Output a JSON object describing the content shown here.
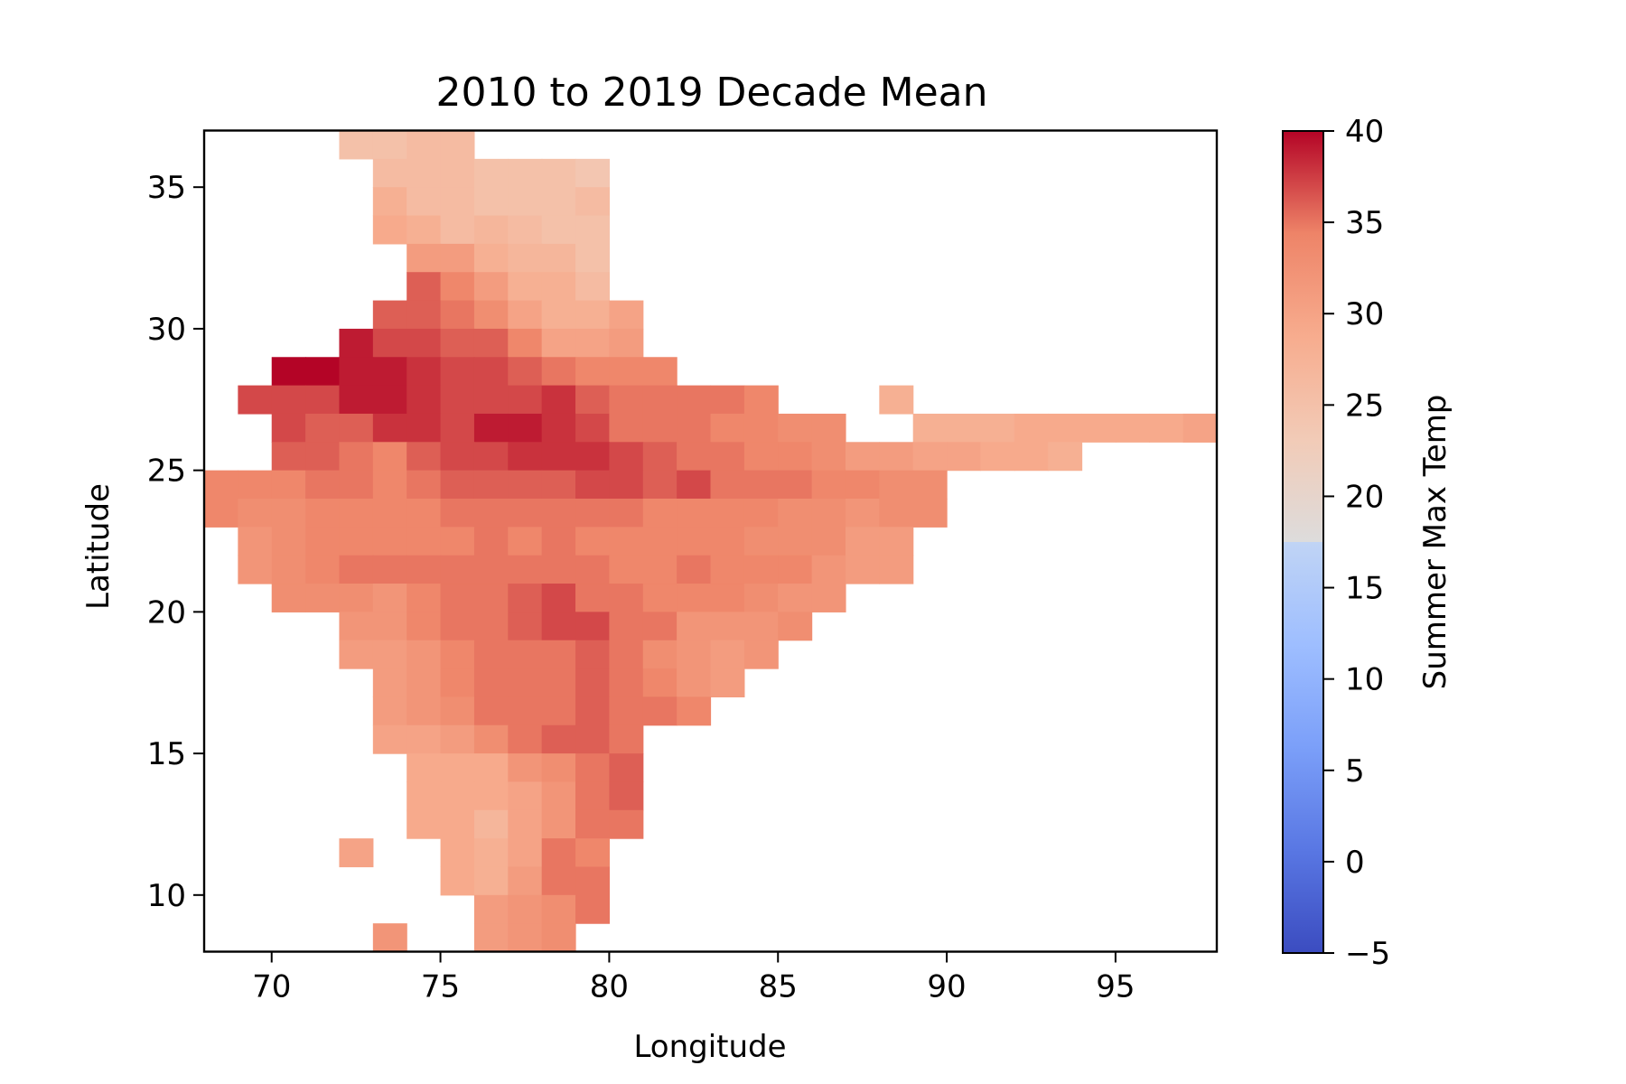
{
  "chart_data": {
    "type": "heatmap",
    "title": "2010 to 2019 Decade Mean",
    "xlabel": "Longitude",
    "ylabel": "Latitude",
    "xlim": [
      68,
      98
    ],
    "ylim": [
      8,
      37
    ],
    "xticks": [
      70,
      75,
      80,
      85,
      90,
      95
    ],
    "yticks": [
      10,
      15,
      20,
      25,
      30,
      35
    ],
    "cell_size_deg": 1,
    "grid_origin": {
      "lon": 68,
      "lat": 8
    },
    "colormap": "coolwarm",
    "colorbar": {
      "label": "Summer Max Temp",
      "range": [
        -5,
        40
      ],
      "ticks": [
        -5,
        0,
        5,
        10,
        15,
        20,
        25,
        30,
        35,
        40
      ]
    },
    "grid": false,
    "rows": [
      {
        "lat": 36.5,
        "start_lon": 72,
        "values": [
          25,
          25,
          26,
          26
        ]
      },
      {
        "lat": 35.5,
        "start_lon": 73,
        "values": [
          26,
          26,
          26,
          25,
          25,
          25,
          24
        ]
      },
      {
        "lat": 34.5,
        "start_lon": 73,
        "values": [
          28,
          26,
          26,
          25,
          25,
          25,
          26
        ]
      },
      {
        "lat": 33.5,
        "start_lon": 73,
        "values": [
          29,
          28,
          26,
          27,
          26,
          25,
          25
        ]
      },
      {
        "lat": 32.5,
        "start_lon": 74,
        "values": [
          31,
          31,
          28,
          27,
          27,
          25
        ]
      },
      {
        "lat": 31.5,
        "start_lon": 74,
        "values": [
          36,
          34,
          31,
          28,
          28,
          26
        ]
      },
      {
        "lat": 30.5,
        "start_lon": 73,
        "values": [
          36,
          36,
          35,
          33,
          30,
          28,
          28,
          30
        ]
      },
      {
        "lat": 29.5,
        "start_lon": 72,
        "values": [
          39,
          37,
          37,
          36,
          36,
          34,
          30,
          30,
          31
        ]
      },
      {
        "lat": 28.5,
        "start_lon": 70,
        "values": [
          40,
          40,
          39,
          39,
          38,
          37,
          37,
          36,
          35,
          34,
          34,
          34
        ]
      },
      {
        "lat": 27.5,
        "start_lon": 69,
        "values": [
          37,
          37,
          37,
          39,
          39,
          38,
          37,
          37,
          37,
          38,
          36,
          35,
          35,
          35,
          35,
          34
        ]
      },
      {
        "lat": 27.5,
        "start_lon": 88,
        "values": [
          28
        ]
      },
      {
        "lat": 26.5,
        "start_lon": 70,
        "values": [
          37,
          36,
          36,
          38,
          38,
          37,
          39,
          39,
          38,
          37,
          35,
          35,
          35,
          34,
          34,
          33,
          33
        ]
      },
      {
        "lat": 26.5,
        "start_lon": 89,
        "values": [
          28,
          28,
          28,
          29,
          29,
          29,
          29,
          29,
          29
        ]
      },
      {
        "lat": 26.5,
        "start_lon": 97,
        "values": [
          30
        ]
      },
      {
        "lat": 25.5,
        "start_lon": 70,
        "values": [
          36,
          36,
          35,
          34,
          36,
          37,
          37,
          38,
          38,
          38,
          37,
          36,
          35,
          35,
          34,
          34,
          33,
          31,
          31,
          30,
          30,
          29,
          29,
          28
        ]
      },
      {
        "lat": 24.5,
        "start_lon": 68,
        "values": [
          34,
          34,
          34,
          35,
          35,
          34,
          35,
          36,
          36,
          36,
          36,
          37,
          37,
          36,
          37,
          35,
          35,
          35,
          34,
          34,
          33,
          33
        ]
      },
      {
        "lat": 23.5,
        "start_lon": 68,
        "values": [
          34,
          33,
          33,
          34,
          34,
          34,
          34,
          35,
          35,
          35,
          35,
          35,
          35,
          34,
          34,
          34,
          34,
          33,
          33,
          32,
          33,
          33
        ]
      },
      {
        "lat": 22.5,
        "start_lon": 69,
        "values": [
          32,
          33,
          34,
          34,
          34,
          34,
          34,
          35,
          34,
          35,
          34,
          34,
          34,
          34,
          34,
          33,
          33,
          33,
          31,
          31
        ]
      },
      {
        "lat": 21.5,
        "start_lon": 69,
        "values": [
          32,
          33,
          34,
          35,
          35,
          35,
          35,
          35,
          35,
          35,
          35,
          34,
          34,
          35,
          34,
          34,
          34,
          32,
          31,
          31
        ]
      },
      {
        "lat": 20.5,
        "start_lon": 70,
        "values": [
          33,
          33,
          33,
          32,
          34,
          35,
          35,
          36,
          37,
          35,
          35,
          34,
          34,
          34,
          33,
          32,
          32
        ]
      },
      {
        "lat": 19.5,
        "start_lon": 72,
        "values": [
          32,
          32,
          34,
          35,
          35,
          36,
          37,
          37,
          35,
          35,
          32,
          32,
          32,
          33
        ]
      },
      {
        "lat": 18.5,
        "start_lon": 72,
        "values": [
          31,
          31,
          32,
          34,
          35,
          35,
          35,
          36,
          35,
          33,
          32,
          31,
          32
        ]
      },
      {
        "lat": 17.5,
        "start_lon": 73,
        "values": [
          31,
          32,
          34,
          35,
          35,
          35,
          36,
          35,
          34,
          32,
          31
        ]
      },
      {
        "lat": 16.5,
        "start_lon": 73,
        "values": [
          31,
          32,
          33,
          35,
          35,
          35,
          36,
          35,
          35,
          34
        ]
      },
      {
        "lat": 15.5,
        "start_lon": 73,
        "values": [
          30,
          30,
          31,
          33,
          35,
          36,
          36,
          35
        ]
      },
      {
        "lat": 14.5,
        "start_lon": 74,
        "values": [
          29,
          29,
          29,
          32,
          33,
          35,
          36
        ]
      },
      {
        "lat": 13.5,
        "start_lon": 74,
        "values": [
          29,
          29,
          29,
          30,
          32,
          35,
          36
        ]
      },
      {
        "lat": 12.5,
        "start_lon": 74,
        "values": [
          29,
          29,
          27,
          30,
          32,
          35,
          35
        ]
      },
      {
        "lat": 11.5,
        "start_lon": 72,
        "values": [
          30
        ]
      },
      {
        "lat": 11.5,
        "start_lon": 75,
        "values": [
          29,
          28,
          30,
          35,
          34
        ]
      },
      {
        "lat": 10.5,
        "start_lon": 75,
        "values": [
          29,
          28,
          31,
          35,
          35
        ]
      },
      {
        "lat": 9.5,
        "start_lon": 76,
        "values": [
          31,
          32,
          33,
          35
        ]
      },
      {
        "lat": 8.5,
        "start_lon": 73,
        "values": [
          32
        ]
      },
      {
        "lat": 8.5,
        "start_lon": 76,
        "values": [
          31,
          32,
          33
        ]
      }
    ]
  }
}
